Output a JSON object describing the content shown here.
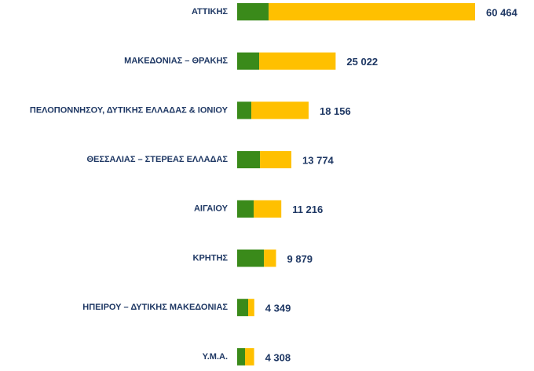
{
  "chart_data": {
    "type": "stacked-bar-horizontal",
    "categories": [
      "ΑΤΤΙΚΗΣ",
      "ΜΑΚΕΔΟΝΙΑΣ – ΘΡΑΚΗΣ",
      "ΠΕΛΟΠΟΝΝΗΣΟΥ, ΔΥΤΙΚΗΣ ΕΛΛΑΔΑΣ & ΙΟΝΙΟΥ",
      "ΘΕΣΣΑΛΙΑΣ – ΣΤΕΡΕΑΣ ΕΛΛΑΔΑΣ",
      "ΑΙΓΑΙΟΥ",
      "ΚΡΗΤΗΣ",
      "ΗΠΕΙΡΟΥ – ΔΥΤΙΚΗΣ ΜΑΚΕΔΟΝΙΑΣ",
      "Υ.Μ.Α."
    ],
    "series": [
      {
        "color": "#3a8a1a",
        "values": [
          8000,
          5600,
          3600,
          5800,
          4200,
          6800,
          2800,
          2000
        ]
      },
      {
        "color": "#ffc000",
        "values": [
          52464,
          19422,
          14556,
          7974,
          7016,
          3079,
          1549,
          2308
        ]
      }
    ],
    "totals": [
      60464,
      25022,
      18156,
      13774,
      11216,
      9879,
      4349,
      4308
    ],
    "total_labels": [
      "60 464",
      "25 022",
      "18 156",
      "13 774",
      "11 216",
      "9 879",
      "4 349",
      "4 308"
    ]
  }
}
